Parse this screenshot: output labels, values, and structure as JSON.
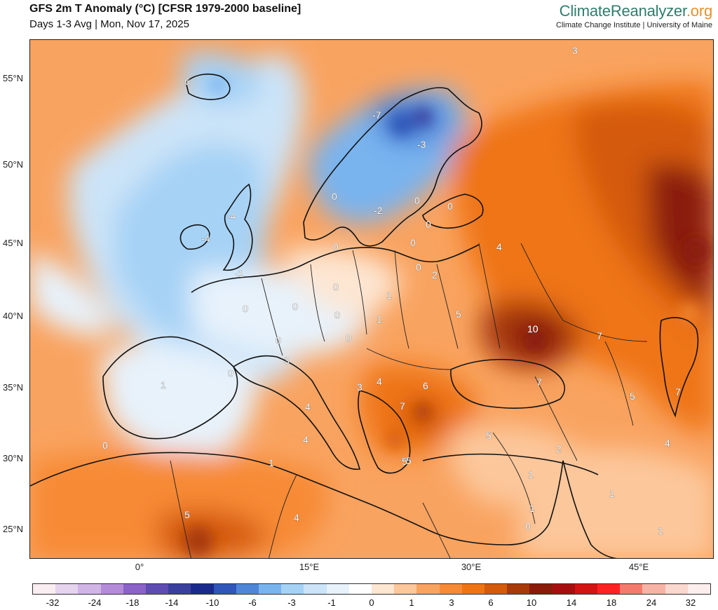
{
  "header": {
    "title": "GFS 2m T Anomaly (°C) [CFSR 1979-2000 baseline]",
    "subtitle": "Days 1-3 Avg | Mon, Nov 17, 2025",
    "brand_part1": "Climate",
    "brand_part2": "Reanalyzer",
    "brand_part3": ".org",
    "brand_sub": "Climate Change Institute | University of Maine"
  },
  "axes": {
    "lat_labels": [
      "55°N",
      "50°N",
      "45°N",
      "40°N",
      "35°N",
      "30°N",
      "25°N"
    ],
    "lon_labels": [
      "0°",
      "15°E",
      "30°E",
      "45°E"
    ]
  },
  "colorbar": {
    "colors": [
      "#fbeef3",
      "#e6d3ee",
      "#d0b5e6",
      "#b48bd9",
      "#8a62c8",
      "#5e4cb3",
      "#3a3f9e",
      "#1a2a8c",
      "#2f56b8",
      "#4f86d8",
      "#79b4ef",
      "#a6d2f6",
      "#cce4f8",
      "#e7f2fb",
      "#ffffff",
      "#fde6d2",
      "#fcc79b",
      "#f9a360",
      "#f78a36",
      "#ef7414",
      "#d45a0c",
      "#a83a0a",
      "#8a1a0a",
      "#a70f0f",
      "#d41313",
      "#ff2222",
      "#f47a6e",
      "#f7b3a5",
      "#fad7cf",
      "#fdeeee"
    ],
    "tick_labels": [
      "-32",
      "-24",
      "-18",
      "-14",
      "-10",
      "-6",
      "-3",
      "-1",
      "0",
      "1",
      "3",
      "6",
      "10",
      "14",
      "18",
      "24",
      "32"
    ]
  },
  "contour_labels": [
    "6",
    "-7",
    "-3",
    "-4",
    "-4",
    "-1",
    "0",
    "-2",
    "0",
    "0",
    "0",
    "0",
    "0",
    "0",
    "0",
    "0",
    "1",
    "2",
    "1",
    "0",
    "0",
    "0",
    "0",
    "0",
    "5",
    "4",
    "3",
    "3",
    "4",
    "4",
    "6",
    "7",
    "5",
    "5",
    "4",
    "5",
    "2",
    "7",
    "5",
    "10",
    "7",
    "7",
    "4",
    "0",
    "1",
    "1",
    "1",
    "0",
    "1",
    "1",
    "4",
    "5",
    "1",
    "3"
  ]
}
